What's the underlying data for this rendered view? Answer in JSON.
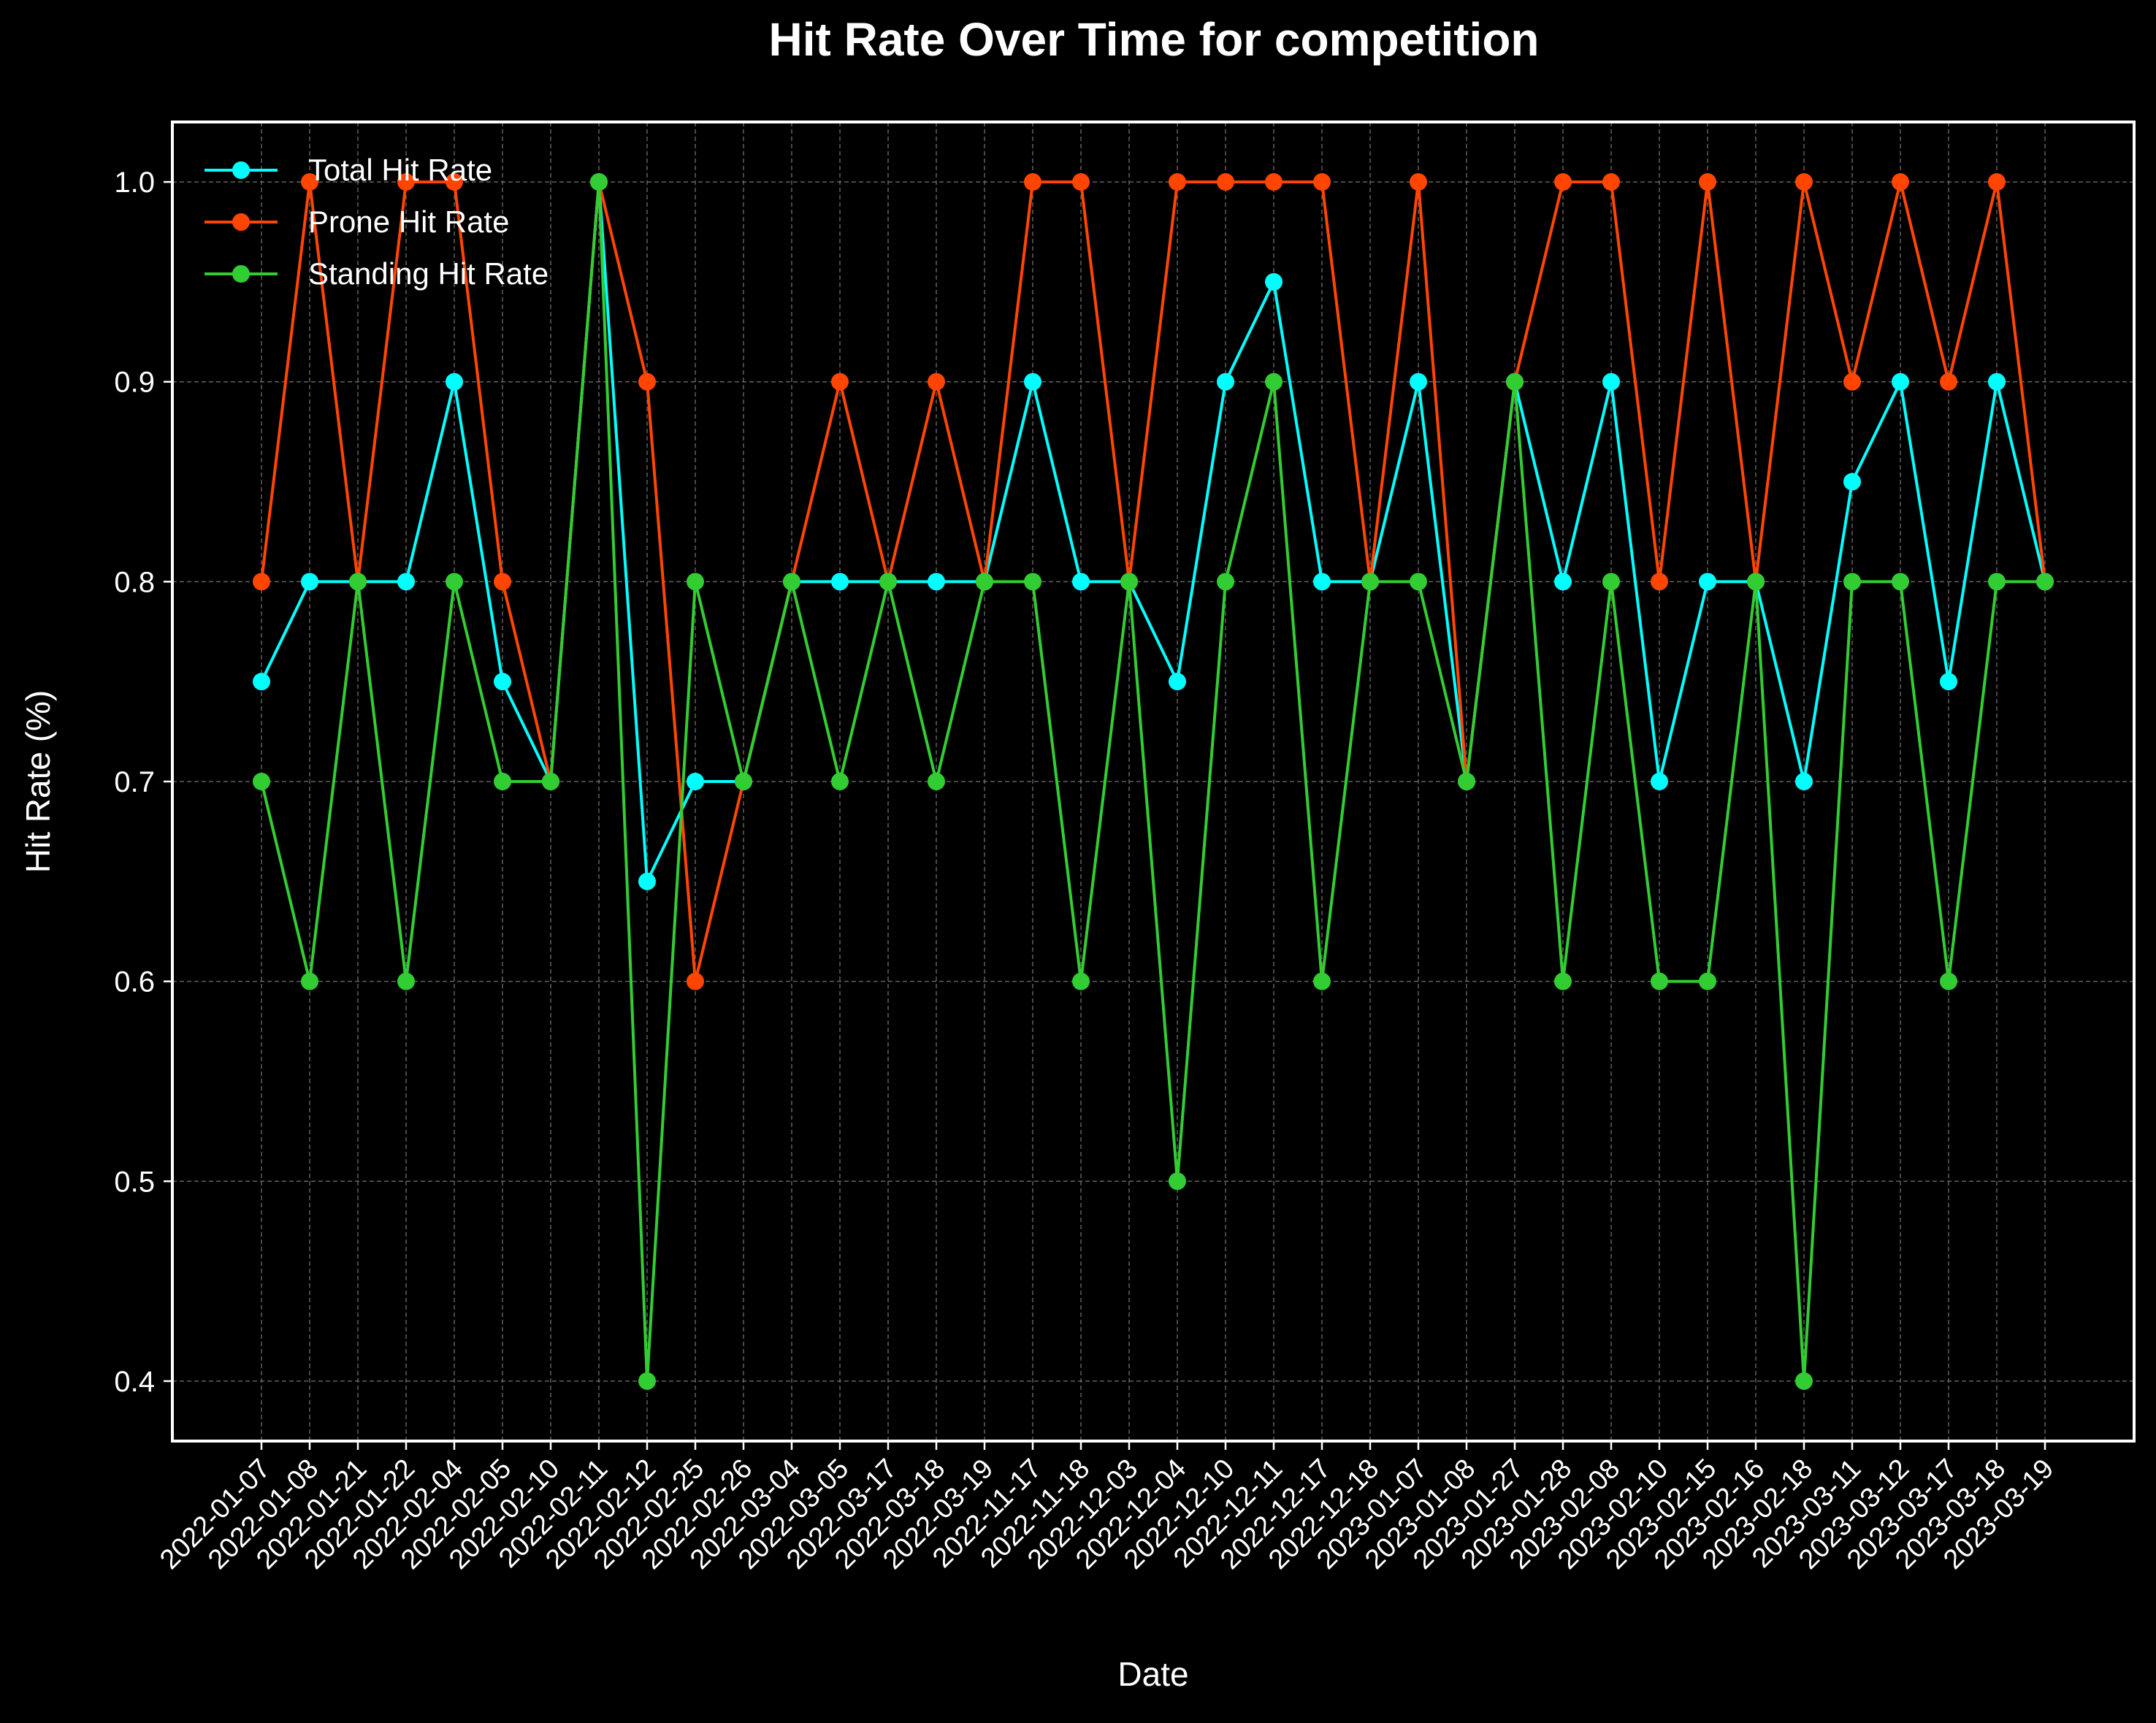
{
  "chart_data": {
    "type": "line",
    "title": "Hit Rate Over Time for competition",
    "xlabel": "Date",
    "ylabel": "Hit Rate (%)",
    "ylim": [
      0.37,
      1.03
    ],
    "yticks": [
      "0.4",
      "0.5",
      "0.6",
      "0.7",
      "0.8",
      "0.9",
      "1.0"
    ],
    "grid": true,
    "legend_position": "upper-left",
    "background": "#000000",
    "categories": [
      "2022-01-07",
      "2022-01-08",
      "2022-01-21",
      "2022-01-22",
      "2022-02-04",
      "2022-02-05",
      "2022-02-10",
      "2022-02-11",
      "2022-02-12",
      "2022-02-25",
      "2022-02-26",
      "2022-03-04",
      "2022-03-05",
      "2022-03-17",
      "2022-03-18",
      "2022-03-19",
      "2022-11-17",
      "2022-11-18",
      "2022-12-03",
      "2022-12-04",
      "2022-12-10",
      "2022-12-11",
      "2022-12-17",
      "2022-12-18",
      "2023-01-07",
      "2023-01-08",
      "2023-01-27",
      "2023-01-28",
      "2023-02-08",
      "2023-02-10",
      "2023-02-15",
      "2023-02-16",
      "2023-02-18",
      "2023-03-11",
      "2023-03-12",
      "2023-03-17",
      "2023-03-18",
      "2023-03-19"
    ],
    "series": [
      {
        "name": "Total Hit Rate",
        "color": "#00ffff",
        "values": [
          0.75,
          0.8,
          0.8,
          0.8,
          0.9,
          0.75,
          0.7,
          1.0,
          0.65,
          0.7,
          0.7,
          0.8,
          0.8,
          0.8,
          0.8,
          0.8,
          0.9,
          0.8,
          0.8,
          0.75,
          0.9,
          0.95,
          0.8,
          0.8,
          0.9,
          0.7,
          0.9,
          0.8,
          0.9,
          0.7,
          0.8,
          0.8,
          0.7,
          0.85,
          0.9,
          0.75,
          0.9,
          0.8
        ]
      },
      {
        "name": "Prone Hit Rate",
        "color": "#ff4500",
        "values": [
          0.8,
          1.0,
          0.8,
          1.0,
          1.0,
          0.8,
          0.7,
          1.0,
          0.9,
          0.6,
          0.7,
          0.8,
          0.9,
          0.8,
          0.9,
          0.8,
          1.0,
          1.0,
          0.8,
          1.0,
          1.0,
          1.0,
          1.0,
          0.8,
          1.0,
          0.7,
          0.9,
          1.0,
          1.0,
          0.8,
          1.0,
          0.8,
          1.0,
          0.9,
          1.0,
          0.9,
          1.0,
          0.8
        ]
      },
      {
        "name": "Standing Hit Rate",
        "color": "#32cd32",
        "values": [
          0.7,
          0.6,
          0.8,
          0.6,
          0.8,
          0.7,
          0.7,
          1.0,
          0.4,
          0.8,
          0.7,
          0.8,
          0.7,
          0.8,
          0.7,
          0.8,
          0.8,
          0.6,
          0.8,
          0.5,
          0.8,
          0.9,
          0.6,
          0.8,
          0.8,
          0.7,
          0.9,
          0.6,
          0.8,
          0.6,
          0.6,
          0.8,
          0.4,
          0.8,
          0.8,
          0.6,
          0.8,
          0.8
        ]
      }
    ]
  }
}
